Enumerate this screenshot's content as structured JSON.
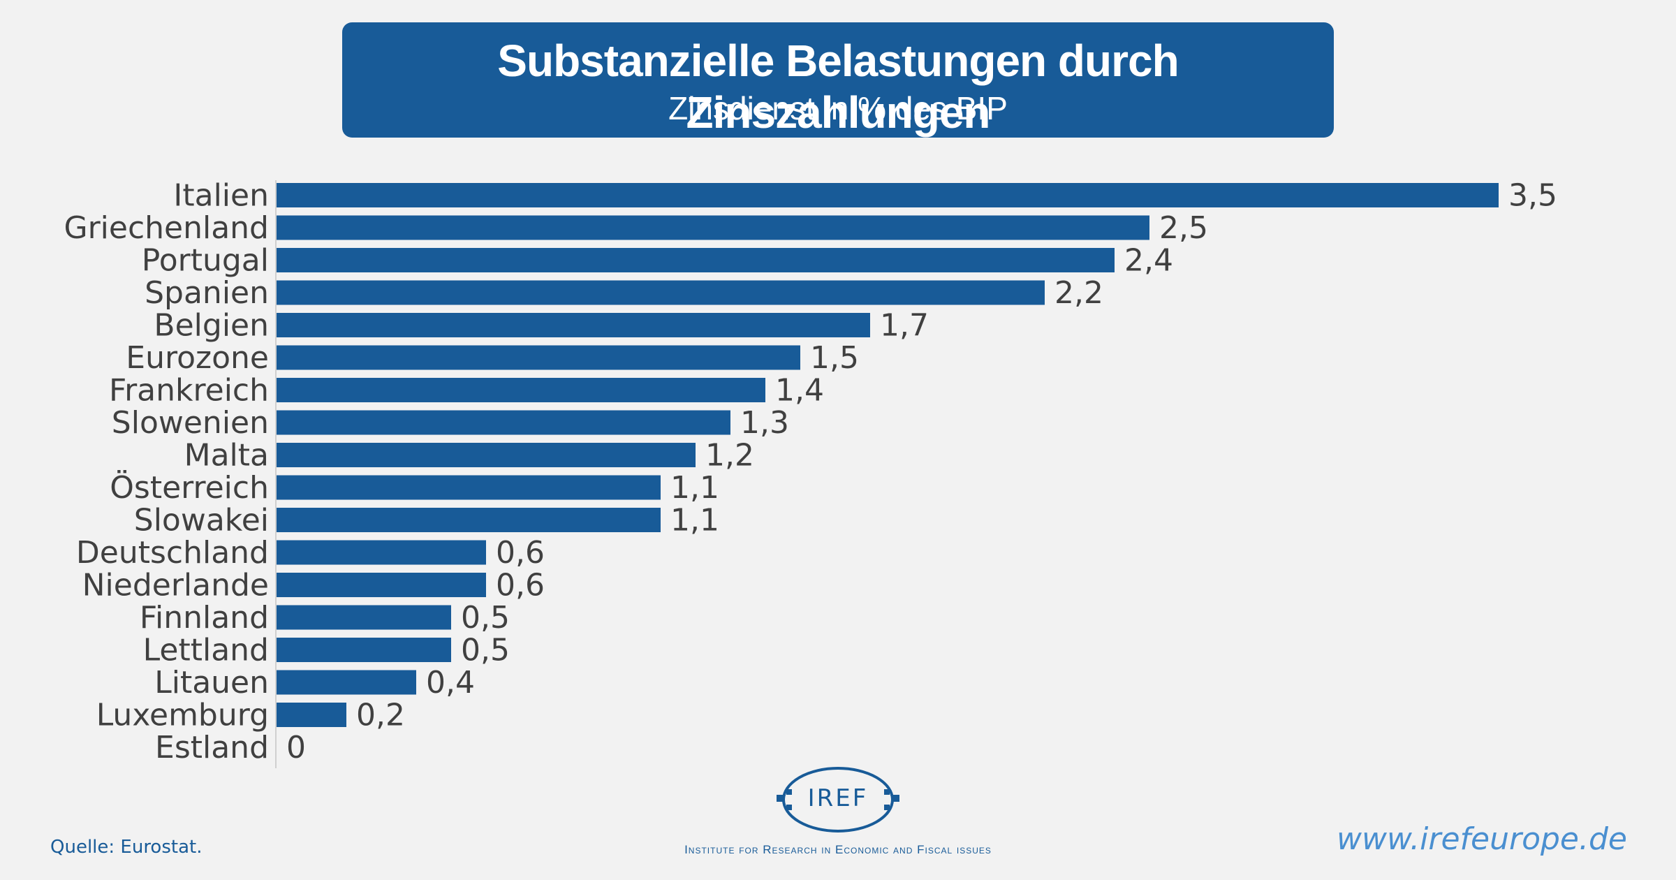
{
  "header": {
    "title": "Substanzielle Belastungen durch Zinszahlungen",
    "subtitle": "Zinsdienst in % des BIP"
  },
  "chart_data": {
    "type": "bar",
    "orientation": "horizontal",
    "title": "Substanzielle Belastungen durch Zinszahlungen",
    "subtitle": "Zinsdienst in % des BIP",
    "xlabel": "",
    "ylabel": "",
    "grid": false,
    "categories": [
      "Italien",
      "Griechenland",
      "Portugal",
      "Spanien",
      "Belgien",
      "Eurozone",
      "Frankreich",
      "Slowenien",
      "Malta",
      "Österreich",
      "Slowakei",
      "Deutschland",
      "Niederlande",
      "Finnland",
      "Lettland",
      "Litauen",
      "Luxemburg",
      "Estland"
    ],
    "values": [
      3.5,
      2.5,
      2.4,
      2.2,
      1.7,
      1.5,
      1.4,
      1.3,
      1.2,
      1.1,
      1.1,
      0.6,
      0.6,
      0.5,
      0.5,
      0.4,
      0.2,
      0
    ],
    "value_labels": [
      "3,5",
      "2,5",
      "2,4",
      "2,2",
      "1,7",
      "1,5",
      "1,4",
      "1,3",
      "1,2",
      "1,1",
      "1,1",
      "0,6",
      "0,6",
      "0,5",
      "0,5",
      "0,4",
      "0,2",
      "0"
    ],
    "xlim": [
      0,
      3.5
    ],
    "bar_color": "#185b98"
  },
  "footer": {
    "source": "Quelle: Eurostat.",
    "website": "www.irefeurope.de",
    "logo_text": "IREF",
    "institute": "Institute for Research in Economic and Fiscal issues"
  }
}
